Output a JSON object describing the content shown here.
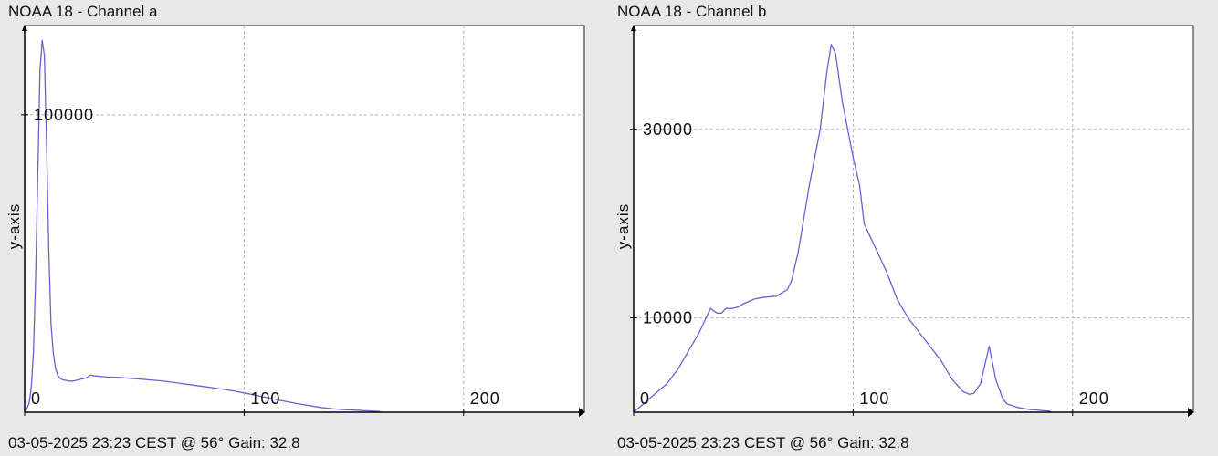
{
  "colors": {
    "line": "#6464d2",
    "grid": "#b4b4b4",
    "axis": "#000000",
    "plot_bg": "#ffffff",
    "bg": "#e8e8e8"
  },
  "chart_data": [
    {
      "type": "line",
      "title": "NOAA 18 - Channel a",
      "ylabel": "y-axis",
      "footer": "03-05-2025 23:23 CEST @ 56° Gain: 32.8",
      "xlim": [
        0,
        255
      ],
      "ylim": [
        0,
        130000
      ],
      "xticks": [
        0,
        100,
        200
      ],
      "yticks": [
        100000
      ],
      "xtick_labels": [
        "0",
        "100",
        "200"
      ],
      "ytick_labels": [
        "100000"
      ],
      "grid": true,
      "series": [
        {
          "x": [
            0,
            1,
            2,
            3,
            4,
            5,
            6,
            7,
            8,
            9,
            10,
            11,
            12,
            13,
            14,
            15,
            16,
            17,
            18,
            19,
            20,
            22,
            24,
            26,
            28,
            30,
            32,
            35,
            38,
            40,
            42,
            45,
            50,
            55,
            60,
            65,
            70,
            75,
            80,
            85,
            90,
            95,
            100,
            105,
            110,
            115,
            120,
            125,
            130,
            135,
            140,
            145,
            150,
            155,
            160,
            162
          ],
          "y": [
            0,
            1000,
            3000,
            8000,
            20000,
            45000,
            80000,
            115000,
            125000,
            120000,
            90000,
            55000,
            30000,
            20000,
            15000,
            12500,
            11500,
            11000,
            10800,
            10700,
            10500,
            10500,
            10800,
            11200,
            11500,
            12500,
            12200,
            12000,
            11800,
            11800,
            11700,
            11600,
            11300,
            11000,
            10700,
            10300,
            9800,
            9300,
            8800,
            8300,
            7800,
            7200,
            6500,
            5800,
            5000,
            4200,
            3500,
            2800,
            2200,
            1600,
            1200,
            900,
            700,
            500,
            300,
            200
          ]
        }
      ]
    },
    {
      "type": "line",
      "title": "NOAA 18 - Channel b",
      "ylabel": "y-axis",
      "footer": "03-05-2025 23:23 CEST @ 56° Gain: 32.8",
      "xlim": [
        0,
        255
      ],
      "ylim": [
        0,
        41000
      ],
      "xticks": [
        0,
        100,
        200
      ],
      "yticks": [
        10000,
        30000
      ],
      "xtick_labels": [
        "0",
        "100",
        "200"
      ],
      "ytick_labels": [
        "10000",
        "30000"
      ],
      "grid": true,
      "series": [
        {
          "x": [
            0,
            5,
            10,
            15,
            20,
            25,
            30,
            35,
            38,
            40,
            42,
            45,
            48,
            50,
            55,
            60,
            65,
            70,
            72,
            75,
            80,
            85,
            88,
            90,
            92,
            95,
            100,
            103,
            105,
            110,
            115,
            120,
            125,
            130,
            135,
            140,
            145,
            150,
            153,
            155,
            158,
            160,
            162,
            165,
            168,
            170,
            175,
            180,
            185,
            190
          ],
          "y": [
            0,
            1000,
            2000,
            3000,
            4500,
            6500,
            8500,
            11000,
            10500,
            10500,
            11000,
            11000,
            11200,
            11500,
            12000,
            12200,
            12300,
            13000,
            14000,
            17000,
            24000,
            30000,
            36000,
            39000,
            38000,
            33000,
            27000,
            24000,
            20000,
            17500,
            15000,
            12000,
            10000,
            8500,
            7000,
            5500,
            3500,
            2200,
            1900,
            2000,
            3000,
            5000,
            7000,
            3500,
            1500,
            900,
            500,
            300,
            200,
            100
          ]
        }
      ]
    }
  ]
}
